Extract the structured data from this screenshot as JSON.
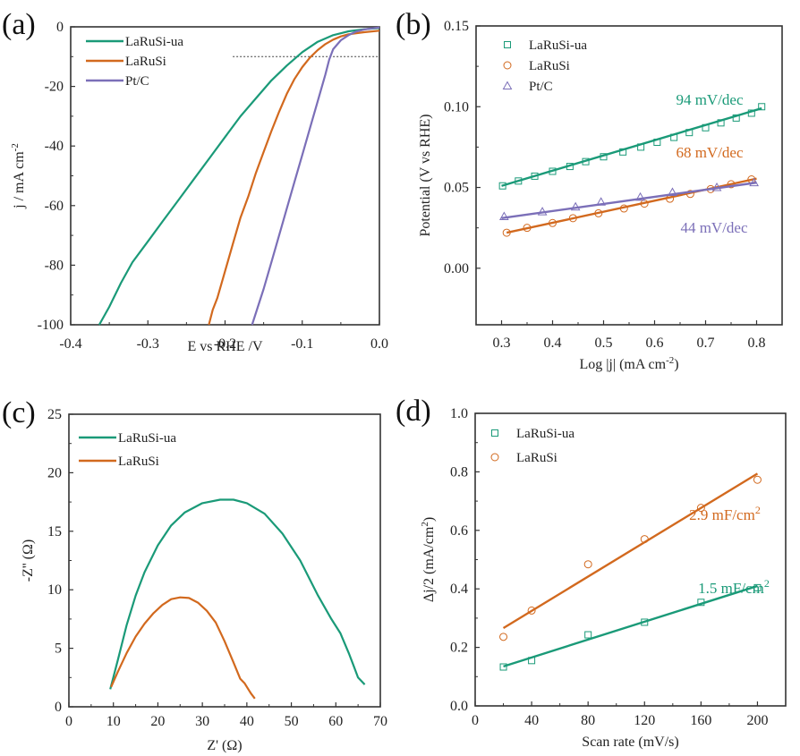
{
  "colors": {
    "green": "#1a9a78",
    "orange": "#d2691e",
    "purple": "#7b6fb8",
    "axis": "#333333"
  },
  "chart_data": [
    {
      "panel": "(a)",
      "type": "line",
      "title": "",
      "xlabel": "E vs RHE /V",
      "ylabel": "j / mA cm",
      "ylabel_sup": "-2",
      "xlim": [
        -0.4,
        0.0
      ],
      "ylim": [
        -100,
        0
      ],
      "xticks": [
        -0.4,
        -0.3,
        -0.2,
        -0.1,
        0.0
      ],
      "xtick_labels": [
        "-0.4",
        "-0.3",
        "-0.2",
        "-0.1",
        "0.0"
      ],
      "yticks": [
        -100,
        -80,
        -60,
        -40,
        -20,
        0
      ],
      "ytick_labels": [
        "-100",
        "-80",
        "-60",
        "-40",
        "-20",
        "0"
      ],
      "legend": "top-left",
      "reference_line": {
        "y": -10,
        "x_from": -0.19,
        "x_to": 0.0,
        "style": "dotted"
      },
      "series": [
        {
          "name": "LaRuSi-ua",
          "color_key": "green",
          "x": [
            -0.363,
            -0.35,
            -0.335,
            -0.32,
            -0.3,
            -0.28,
            -0.26,
            -0.24,
            -0.22,
            -0.2,
            -0.18,
            -0.16,
            -0.14,
            -0.12,
            -0.1,
            -0.08,
            -0.06,
            -0.04,
            -0.02,
            0.0
          ],
          "y": [
            -100,
            -94,
            -86,
            -79,
            -72,
            -65,
            -58,
            -51,
            -44,
            -37,
            -30,
            -24,
            -18,
            -13,
            -8.5,
            -5,
            -2.8,
            -1.5,
            -0.8,
            -0.4
          ]
        },
        {
          "name": "LaRuSi",
          "color_key": "orange",
          "x": [
            -0.221,
            -0.216,
            -0.21,
            -0.2,
            -0.19,
            -0.18,
            -0.17,
            -0.16,
            -0.15,
            -0.14,
            -0.13,
            -0.12,
            -0.11,
            -0.1,
            -0.09,
            -0.08,
            -0.07,
            -0.06,
            -0.05,
            -0.04,
            -0.02,
            0.0
          ],
          "y": [
            -100,
            -95,
            -91,
            -82,
            -73,
            -64,
            -57,
            -49,
            -42,
            -35,
            -28.5,
            -22.5,
            -17.5,
            -13.5,
            -10.3,
            -7.8,
            -5.8,
            -4.3,
            -3.2,
            -2.5,
            -1.8,
            -1.3
          ]
        },
        {
          "name": "Pt/C",
          "color_key": "purple",
          "x": [
            -0.165,
            -0.15,
            -0.14,
            -0.13,
            -0.12,
            -0.11,
            -0.1,
            -0.09,
            -0.08,
            -0.07,
            -0.065,
            -0.06,
            -0.05,
            -0.04,
            -0.03,
            -0.02,
            -0.01,
            0.0
          ],
          "y": [
            -100,
            -88,
            -79,
            -70,
            -61,
            -52,
            -43,
            -34,
            -25,
            -16,
            -11,
            -7.5,
            -4.5,
            -2.8,
            -1.6,
            -0.9,
            -0.5,
            -0.2
          ]
        }
      ]
    },
    {
      "panel": "(b)",
      "type": "scatter",
      "title": "",
      "xlabel": "Log |j| (mA cm",
      "xlabel_sup": "-2",
      "xlabel_end": ")",
      "ylabel": "Potential (V vs RHE)",
      "xlim": [
        0.25,
        0.85
      ],
      "ylim": [
        -0.035,
        0.15
      ],
      "xticks": [
        0.3,
        0.4,
        0.5,
        0.6,
        0.7,
        0.8
      ],
      "xtick_labels": [
        "0.3",
        "0.4",
        "0.5",
        "0.6",
        "0.7",
        "0.8"
      ],
      "yticks": [
        0.0,
        0.05,
        0.1,
        0.15
      ],
      "ytick_labels": [
        "0.00",
        "0.05",
        "0.10",
        "0.15"
      ],
      "legend": "top-left",
      "series": [
        {
          "name": "LaRuSi-ua",
          "marker": "square",
          "color_key": "green",
          "slope_label": "94 mV/dec",
          "x": [
            0.302,
            0.333,
            0.365,
            0.4,
            0.434,
            0.465,
            0.5,
            0.538,
            0.573,
            0.605,
            0.638,
            0.668,
            0.7,
            0.73,
            0.76,
            0.79,
            0.81
          ],
          "y": [
            0.051,
            0.054,
            0.057,
            0.06,
            0.063,
            0.066,
            0.069,
            0.072,
            0.075,
            0.078,
            0.081,
            0.084,
            0.087,
            0.09,
            0.093,
            0.096,
            0.1
          ],
          "fit": {
            "x": [
              0.3,
              0.81
            ],
            "y": [
              0.051,
              0.099
            ]
          }
        },
        {
          "name": "LaRuSi",
          "marker": "circle",
          "color_key": "orange",
          "slope_label": "68 mV/dec",
          "x": [
            0.31,
            0.35,
            0.4,
            0.44,
            0.49,
            0.54,
            0.58,
            0.63,
            0.67,
            0.71,
            0.75,
            0.79
          ],
          "y": [
            0.022,
            0.025,
            0.028,
            0.031,
            0.034,
            0.037,
            0.04,
            0.043,
            0.046,
            0.049,
            0.052,
            0.055
          ],
          "fit": {
            "x": [
              0.31,
              0.8
            ],
            "y": [
              0.022,
              0.0555
            ]
          }
        },
        {
          "name": "Pt/C",
          "marker": "triangle",
          "color_key": "purple",
          "slope_label": "44 mV/dec",
          "x": [
            0.305,
            0.38,
            0.445,
            0.495,
            0.572,
            0.635,
            0.722,
            0.795
          ],
          "y": [
            0.032,
            0.035,
            0.038,
            0.041,
            0.044,
            0.047,
            0.05,
            0.053
          ],
          "fit": {
            "x": [
              0.3,
              0.8
            ],
            "y": [
              0.031,
              0.053
            ]
          }
        }
      ]
    },
    {
      "panel": "(c)",
      "type": "line",
      "title": "",
      "xlabel": "Z' (Ω)",
      "ylabel": "-Z'' (Ω)",
      "xlim": [
        0,
        70
      ],
      "ylim": [
        0,
        25
      ],
      "xticks": [
        0,
        10,
        20,
        30,
        40,
        50,
        60,
        70
      ],
      "xtick_labels": [
        "0",
        "10",
        "20",
        "30",
        "40",
        "50",
        "60",
        "70"
      ],
      "yticks": [
        0,
        5,
        10,
        15,
        20,
        25
      ],
      "ytick_labels": [
        "0",
        "5",
        "10",
        "15",
        "20",
        "25"
      ],
      "legend": "top-left",
      "series": [
        {
          "name": "LaRuSi-ua",
          "color_key": "green",
          "x": [
            9.3,
            11,
            13,
            15,
            17,
            20,
            23,
            26,
            30,
            34,
            37,
            40,
            44,
            48,
            52,
            56,
            59,
            61,
            63,
            64,
            65,
            66.5
          ],
          "y": [
            1.5,
            4,
            7,
            9.5,
            11.5,
            13.8,
            15.5,
            16.6,
            17.4,
            17.7,
            17.7,
            17.4,
            16.5,
            14.8,
            12.5,
            9.5,
            7.5,
            6.3,
            4.5,
            3.5,
            2.5,
            1.9
          ]
        },
        {
          "name": "LaRuSi",
          "color_key": "orange",
          "x": [
            9.5,
            11,
            13,
            15,
            17,
            19,
            21,
            23,
            25,
            27,
            29,
            31,
            33,
            35,
            37,
            38.5,
            39.5,
            40.5,
            41,
            41.8
          ],
          "y": [
            1.7,
            3,
            4.6,
            6,
            7.1,
            8,
            8.7,
            9.2,
            9.35,
            9.3,
            8.9,
            8.2,
            7.2,
            5.6,
            3.8,
            2.4,
            2.0,
            1.4,
            1.1,
            0.7
          ]
        }
      ]
    },
    {
      "panel": "(d)",
      "type": "scatter",
      "title": "",
      "xlabel": "Scan rate (mV/s)",
      "ylabel": "Δj/2 (mA/cm",
      "ylabel_sup": "2",
      "ylabel_end": ")",
      "xlim": [
        0,
        220
      ],
      "ylim": [
        0,
        1.0
      ],
      "xticks": [
        0,
        40,
        80,
        120,
        160,
        200
      ],
      "xtick_labels": [
        "0",
        "40",
        "80",
        "120",
        "160",
        "200"
      ],
      "yticks": [
        0.0,
        0.2,
        0.4,
        0.6,
        0.8,
        1.0
      ],
      "ytick_labels": [
        "0.0",
        "0.2",
        "0.4",
        "0.6",
        "0.8",
        "1.0"
      ],
      "legend": "top-left",
      "series": [
        {
          "name": "LaRuSi-ua",
          "marker": "square",
          "color_key": "green",
          "slope_label": "1.5 mF/cm",
          "slope_sup": "2",
          "x": [
            20,
            40,
            80,
            120,
            160,
            200
          ],
          "y": [
            0.133,
            0.155,
            0.243,
            0.286,
            0.354,
            0.404
          ],
          "fit": {
            "x": [
              20,
              200
            ],
            "y": [
              0.135,
              0.41
            ]
          }
        },
        {
          "name": "LaRuSi",
          "marker": "circle",
          "color_key": "orange",
          "slope_label": "2.9 mF/cm",
          "slope_sup": "2",
          "x": [
            20,
            40,
            80,
            120,
            160,
            200
          ],
          "y": [
            0.236,
            0.326,
            0.484,
            0.57,
            0.677,
            0.773
          ],
          "fit": {
            "x": [
              20,
              200
            ],
            "y": [
              0.266,
              0.794
            ]
          }
        }
      ]
    }
  ]
}
